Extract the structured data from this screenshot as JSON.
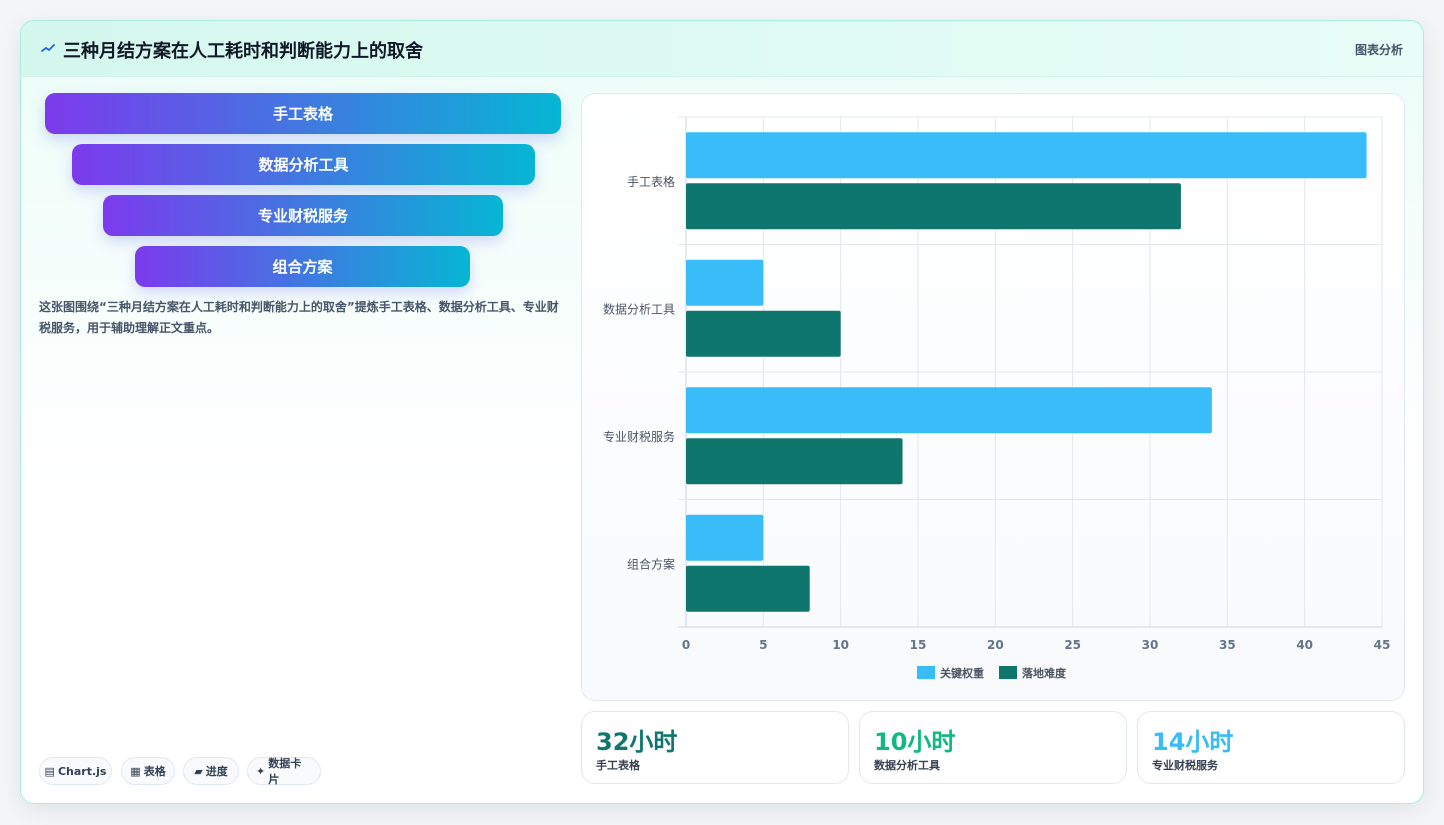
{
  "header": {
    "title": "三种月结方案在人工耗时和判断能力上的取舍",
    "tag": "图表分析"
  },
  "funnel": {
    "items": [
      "手工表格",
      "数据分析工具",
      "专业财税服务",
      "组合方案"
    ]
  },
  "description": "这张图围绕“三种月结方案在人工耗时和判断能力上的取舍”提炼手工表格、数据分析工具、专业财税服务，用于辅助理解正文重点。",
  "chips": [
    {
      "icon": "chart-icon",
      "glyph": "▤",
      "label": "Chart.js"
    },
    {
      "icon": "table-icon",
      "glyph": "▦",
      "label": "表格"
    },
    {
      "icon": "progress-icon",
      "glyph": "▰",
      "label": "进度"
    },
    {
      "icon": "sparkle-icon",
      "glyph": "✦",
      "label": "数据卡片"
    }
  ],
  "stats": [
    {
      "value": "32小时",
      "label": "手工表格",
      "color": "#0f766e"
    },
    {
      "value": "10小时",
      "label": "数据分析工具",
      "color": "#10b981"
    },
    {
      "value": "14小时",
      "label": "专业财税服务",
      "color": "#38bdf8"
    }
  ],
  "chart_data": {
    "type": "bar",
    "orientation": "horizontal",
    "categories": [
      "手工表格",
      "数据分析工具",
      "专业财税服务",
      "组合方案"
    ],
    "series": [
      {
        "name": "关键权重",
        "values": [
          44,
          5,
          34,
          5
        ],
        "color": "#38bdf8"
      },
      {
        "name": "落地难度",
        "values": [
          32,
          10,
          14,
          8
        ],
        "color": "#0f766e"
      }
    ],
    "xlim": [
      0,
      45
    ],
    "xticks": [
      0,
      5,
      10,
      15,
      20,
      25,
      30,
      35,
      40,
      45
    ],
    "grid": true,
    "legend": "bottom"
  }
}
